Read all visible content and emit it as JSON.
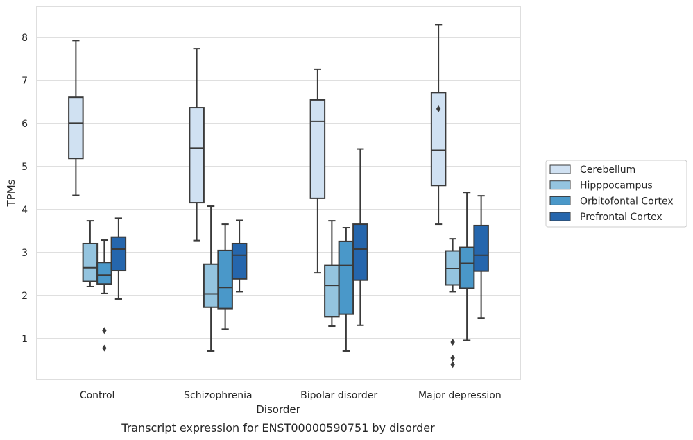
{
  "chart_data": {
    "type": "box",
    "xlabel": "Disorder",
    "ylabel": "TPMs",
    "caption": "Transcript expression for ENST00000590751 by disorder",
    "ylim": [
      0.05,
      8.75
    ],
    "yticks": [
      1,
      2,
      3,
      4,
      5,
      6,
      7,
      8
    ],
    "grid": "horizontal",
    "legend_position": "right",
    "categories": [
      "Control",
      "Schizophrenia",
      "Bipolar disorder",
      "Major depression"
    ],
    "series": [
      {
        "name": "Cerebellum",
        "color": "#d0e1f2",
        "boxes": [
          {
            "whislo": 4.33,
            "q1": 5.19,
            "med": 6.01,
            "q3": 6.61,
            "whishi": 7.93,
            "fliers": []
          },
          {
            "whislo": 3.28,
            "q1": 4.16,
            "med": 5.43,
            "q3": 6.37,
            "whishi": 7.74,
            "fliers": []
          },
          {
            "whislo": 2.53,
            "q1": 4.26,
            "med": 6.05,
            "q3": 6.55,
            "whishi": 7.26,
            "fliers": []
          },
          {
            "whislo": 3.66,
            "q1": 4.56,
            "med": 5.38,
            "q3": 6.72,
            "whishi": 8.3,
            "fliers": [
              6.34
            ]
          }
        ]
      },
      {
        "name": "Hipppocampus",
        "color": "#94c4df",
        "boxes": [
          {
            "whislo": 2.21,
            "q1": 2.33,
            "med": 2.65,
            "q3": 3.21,
            "whishi": 3.74,
            "fliers": []
          },
          {
            "whislo": 0.71,
            "q1": 1.73,
            "med": 2.04,
            "q3": 2.73,
            "whishi": 4.08,
            "fliers": []
          },
          {
            "whislo": 1.29,
            "q1": 1.51,
            "med": 2.24,
            "q3": 2.7,
            "whishi": 3.74,
            "fliers": []
          },
          {
            "whislo": 2.09,
            "q1": 2.25,
            "med": 2.63,
            "q3": 3.04,
            "whishi": 3.32,
            "fliers": [
              0.92,
              0.55,
              0.4
            ]
          }
        ]
      },
      {
        "name": "Orbitofontal Cortex",
        "color": "#4a98c9",
        "boxes": [
          {
            "whislo": 2.05,
            "q1": 2.27,
            "med": 2.48,
            "q3": 2.77,
            "whishi": 3.29,
            "fliers": [
              1.19,
              0.78
            ]
          },
          {
            "whislo": 1.22,
            "q1": 1.7,
            "med": 2.19,
            "q3": 3.05,
            "whishi": 3.66,
            "fliers": []
          },
          {
            "whislo": 0.71,
            "q1": 1.57,
            "med": 2.7,
            "q3": 3.26,
            "whishi": 3.58,
            "fliers": []
          },
          {
            "whislo": 0.96,
            "q1": 2.17,
            "med": 2.75,
            "q3": 3.12,
            "whishi": 4.4,
            "fliers": []
          }
        ]
      },
      {
        "name": "Prefrontal Cortex",
        "color": "#2566ad",
        "boxes": [
          {
            "whislo": 1.92,
            "q1": 2.58,
            "med": 3.08,
            "q3": 3.36,
            "whishi": 3.8,
            "fliers": []
          },
          {
            "whislo": 2.09,
            "q1": 2.39,
            "med": 2.94,
            "q3": 3.21,
            "whishi": 3.75,
            "fliers": []
          },
          {
            "whislo": 1.31,
            "q1": 2.36,
            "med": 3.08,
            "q3": 3.66,
            "whishi": 5.41,
            "fliers": []
          },
          {
            "whislo": 1.48,
            "q1": 2.57,
            "med": 2.94,
            "q3": 3.63,
            "whishi": 4.32,
            "fliers": []
          }
        ]
      }
    ]
  }
}
